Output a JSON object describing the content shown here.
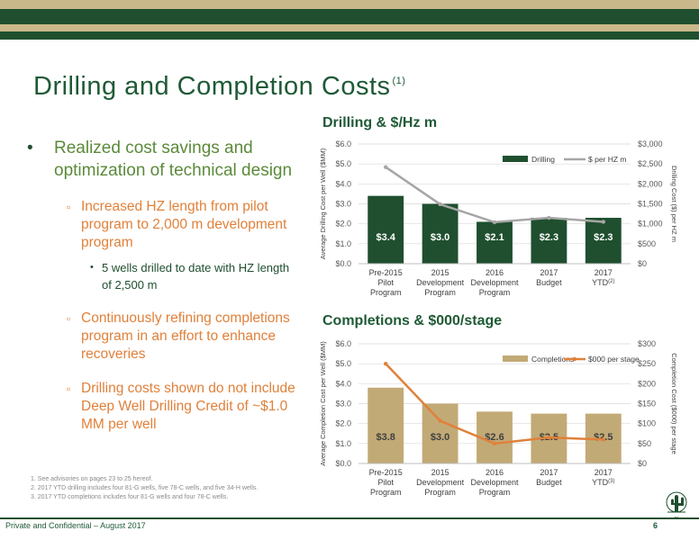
{
  "title": "Drilling and Completion Costs",
  "title_sup": "(1)",
  "bullets": {
    "main": "Realized cost savings and optimization of technical design",
    "sub1": "Increased HZ length from pilot program to 2,000 m development program",
    "sub1_detail": "5 wells drilled to date with HZ length of 2,500 m",
    "sub2": "Continuously refining completions program in an effort to enhance recoveries",
    "sub3": "Drilling costs shown do not include Deep Well Drilling Credit of ~$1.0 MM per well"
  },
  "footnotes": [
    "1.  See advisories on pages 23 to 25 hereof.",
    "2.  2017 YTD drilling includes four 81-G wells, five 78-C wells, and five 34-H wells.",
    "3.  2017 YTD completions includes four 81-G wells and four 78-C wells."
  ],
  "footer": "Private and Confidential – August 2017",
  "page_number": "6",
  "colors": {
    "dark_green": "#1f4f2f",
    "brand_green": "#1f5a36",
    "gold": "#c9b88a",
    "tan_bar": "#c2aa76",
    "orange_line": "#e0813a",
    "gray_line": "#a6a6a6"
  },
  "chart_data": [
    {
      "type": "bar",
      "title": "Drilling & $/Hz m",
      "categories": [
        [
          "Pre-2015",
          "Pilot",
          "Program"
        ],
        [
          "2015",
          "Development",
          "Program"
        ],
        [
          "2016",
          "Development",
          "Program"
        ],
        [
          "2017",
          "Budget"
        ],
        [
          "2017",
          "YTD"
        ]
      ],
      "category_sups": [
        "",
        "",
        "",
        "",
        "(2)"
      ],
      "ylabel": "Average Drilling Cost per Well ($MM)",
      "y2label": "Drilling Cost ($) per HZ m",
      "ylim": [
        0,
        6
      ],
      "yticks": [
        "$0.0",
        "$1.0",
        "$2.0",
        "$3.0",
        "$4.0",
        "$5.0",
        "$6.0"
      ],
      "y2lim": [
        0,
        3000
      ],
      "y2ticks": [
        "$0",
        "$500",
        "$1,000",
        "$1,500",
        "$2,000",
        "$2,500",
        "$3,000"
      ],
      "legend_position": "top-right",
      "series": [
        {
          "name": "Drilling",
          "kind": "bar",
          "axis": "left",
          "values": [
            3.4,
            3.0,
            2.1,
            2.3,
            2.3
          ],
          "labels": [
            "$3.4",
            "$3.0",
            "$2.1",
            "$2.3",
            "$2.3"
          ]
        },
        {
          "name": "$ per HZ m",
          "kind": "line",
          "axis": "right",
          "values": [
            2420,
            1490,
            1040,
            1150,
            1050
          ]
        }
      ]
    },
    {
      "type": "bar",
      "title": "Completions & $000/stage",
      "categories": [
        [
          "Pre-2015",
          "Pilot",
          "Program"
        ],
        [
          "2015",
          "Development",
          "Program"
        ],
        [
          "2016",
          "Development",
          "Program"
        ],
        [
          "2017",
          "Budget"
        ],
        [
          "2017",
          "YTD"
        ]
      ],
      "category_sups": [
        "",
        "",
        "",
        "",
        "(3)"
      ],
      "ylabel": "Average Completion Cost per Well ($MM)",
      "y2label": "Completion Cost ($000) per stage",
      "ylim": [
        0,
        6
      ],
      "yticks": [
        "$0.0",
        "$1.0",
        "$2.0",
        "$3.0",
        "$4.0",
        "$5.0",
        "$6.0"
      ],
      "y2lim": [
        0,
        300
      ],
      "y2ticks": [
        "$0",
        "$50",
        "$100",
        "$150",
        "$200",
        "$250",
        "$300"
      ],
      "legend_position": "top-right",
      "series": [
        {
          "name": "Completions",
          "kind": "bar",
          "axis": "left",
          "values": [
            3.8,
            3.0,
            2.6,
            2.5,
            2.5
          ],
          "labels": [
            "$3.8",
            "$3.0",
            "$2.6",
            "$2.5",
            "$2.5"
          ]
        },
        {
          "name": "$000 per stage",
          "kind": "line",
          "axis": "right",
          "values": [
            250,
            107,
            50,
            65,
            60
          ]
        }
      ]
    }
  ]
}
